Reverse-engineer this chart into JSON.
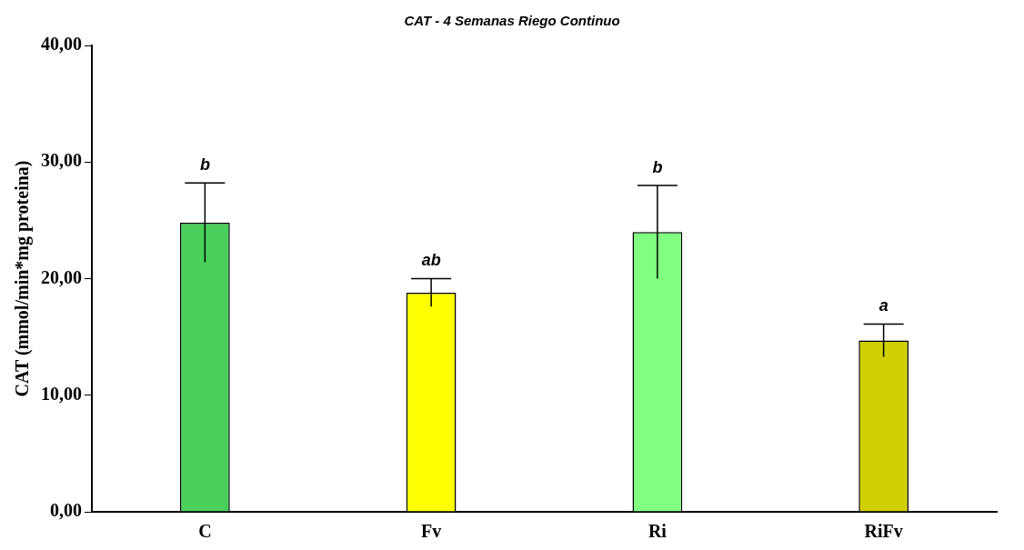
{
  "chart_data": {
    "type": "bar",
    "title": "CAT - 4 Semanas Riego Continuo",
    "ylabel": "CAT (mmol/min*mg proteina)",
    "categories": [
      "C",
      "Fv",
      "Ri",
      "RiFv"
    ],
    "values": [
      24.8,
      18.8,
      24.0,
      14.7
    ],
    "errors": [
      3.4,
      1.2,
      4.0,
      1.4
    ],
    "colors": [
      "#48d05a",
      "#ffff00",
      "#80ff80",
      "#d0d000"
    ],
    "ylim": [
      0,
      40
    ],
    "yticks": [
      {
        "value": 0,
        "label": "0,00"
      },
      {
        "value": 10,
        "label": "10,00"
      },
      {
        "value": 20,
        "label": "20,00"
      },
      {
        "value": 30,
        "label": "30,00"
      },
      {
        "value": 40,
        "label": "40,00"
      }
    ],
    "annotations": [
      {
        "text": "b",
        "x": "C",
        "y": 28.2
      },
      {
        "text": "ab",
        "x": "Fv",
        "y": 20.0
      },
      {
        "text": "b",
        "x": "Ri",
        "y": 28.0
      },
      {
        "text": "a",
        "x": "RiFv",
        "y": 16.1
      }
    ],
    "grid": false,
    "legend": false
  }
}
